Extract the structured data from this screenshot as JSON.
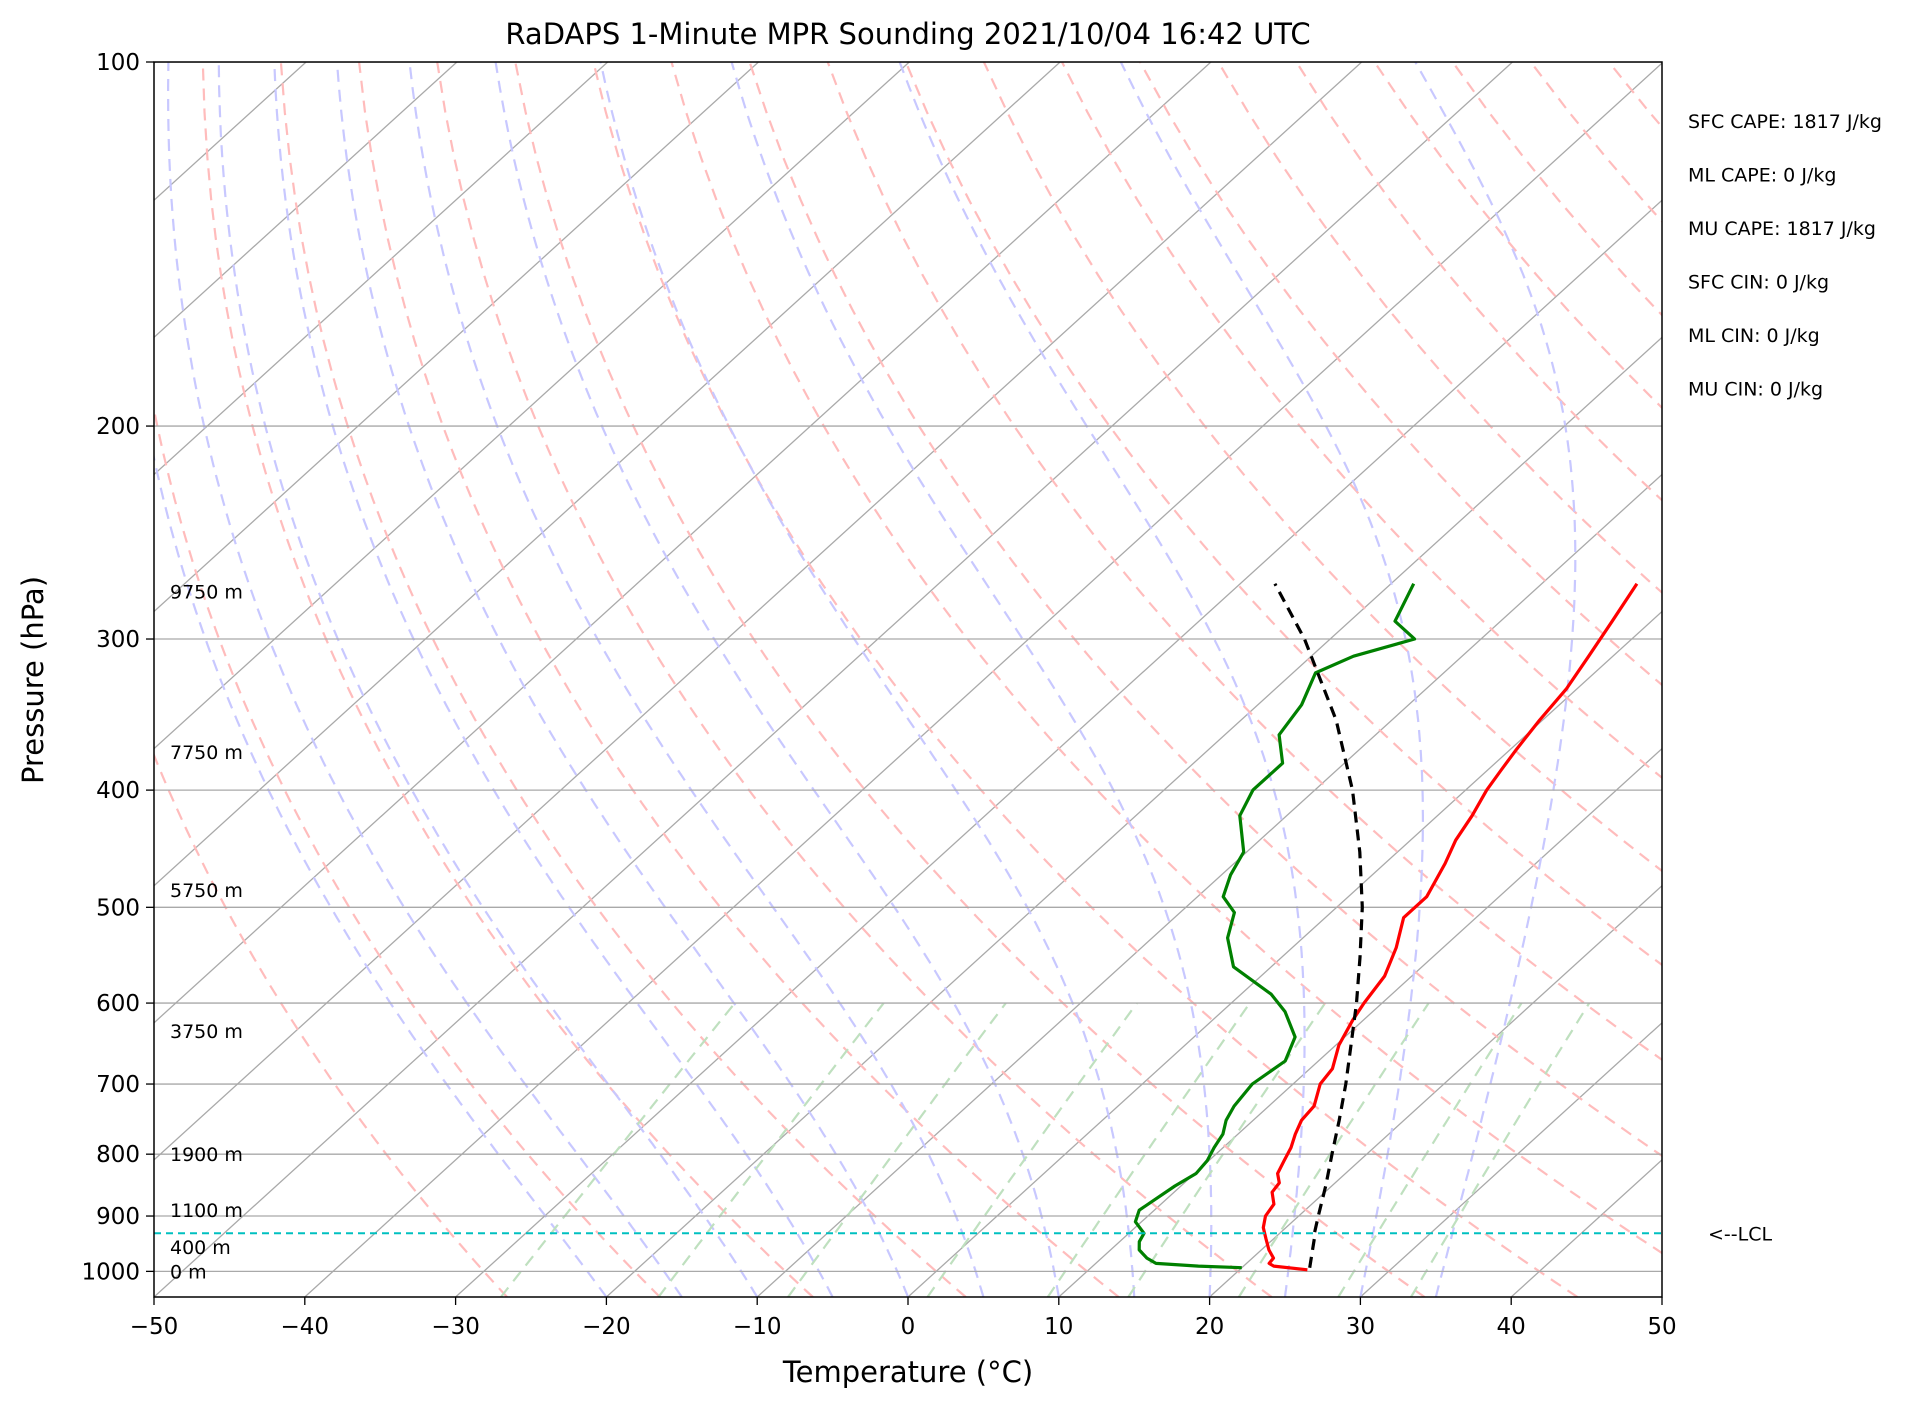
{
  "chart_data": {
    "type": "skew-t log-p sounding",
    "title": "RaDAPS 1-Minute MPR Sounding 2021/10/04 16:42 UTC",
    "xlabel": "Temperature (°C)",
    "ylabel": "Pressure (hPa)",
    "xlim": [
      -50,
      50
    ],
    "ylim": [
      1050,
      100
    ],
    "x_ticks": [
      -50,
      -40,
      -30,
      -20,
      -10,
      0,
      10,
      20,
      30,
      40,
      50
    ],
    "x_tick_labels": [
      "−50",
      "−40",
      "−30",
      "−20",
      "−10",
      "0",
      "10",
      "20",
      "30",
      "40",
      "50"
    ],
    "y_ticks": [
      1000,
      900,
      800,
      700,
      600,
      500,
      400,
      300,
      200,
      100
    ],
    "y_tick_labels": [
      "1000",
      "900",
      "800",
      "700",
      "600",
      "500",
      "400",
      "300",
      "200",
      "100"
    ],
    "grid": true,
    "y_scale": "log",
    "skew": true,
    "series": [
      {
        "kind": "temperature",
        "color": "#ff0000",
        "pressure": [
          997,
          990,
          985,
          975,
          960,
          940,
          920,
          900,
          880,
          860,
          845,
          830,
          810,
          790,
          770,
          750,
          730,
          700,
          680,
          650,
          620,
          600,
          570,
          540,
          510,
          490,
          460,
          440,
          420,
          400,
          385,
          370,
          350,
          330,
          310,
          290,
          270
        ],
        "temperature": [
          24.5,
          22,
          21.5,
          21.4,
          20.5,
          19.5,
          18.5,
          17.8,
          17.5,
          16.5,
          16.3,
          15.5,
          15,
          14.5,
          13.8,
          13.2,
          13.0,
          11.8,
          11.5,
          10.2,
          9.3,
          8.8,
          8.2,
          6.9,
          5.2,
          5.2,
          4.0,
          3.0,
          2.3,
          1.4,
          0.9,
          0.4,
          -0.2,
          -0.7,
          -1.6,
          -2.6,
          -3.7
        ]
      },
      {
        "kind": "dewpoint",
        "color": "#008000",
        "pressure": [
          993,
          990,
          985,
          975,
          960,
          945,
          930,
          910,
          890,
          870,
          850,
          830,
          810,
          790,
          770,
          750,
          730,
          700,
          670,
          640,
          610,
          590,
          560,
          530,
          505,
          490,
          470,
          450,
          420,
          400,
          380,
          360,
          340,
          320,
          310,
          300,
          290,
          270
        ],
        "dewpoint": [
          20,
          17,
          14,
          13,
          11.9,
          11.3,
          11.0,
          9.6,
          9.0,
          9.3,
          9.6,
          10.1,
          9.9,
          9.4,
          9.0,
          8.2,
          7.7,
          7.3,
          7.8,
          6.7,
          4.2,
          2.0,
          -2.5,
          -5.0,
          -6.4,
          -8.3,
          -9.4,
          -10.2,
          -13.1,
          -14.1,
          -14.1,
          -16.4,
          -17.1,
          -18.5,
          -17.2,
          -14.4,
          -17.0,
          -18.5
        ]
      },
      {
        "kind": "parcel",
        "color": "#000000",
        "pressure": [
          993,
          940,
          930,
          900,
          850,
          800,
          750,
          700,
          650,
          600,
          550,
          500,
          450,
          400,
          350,
          300,
          270
        ],
        "temperature": [
          24.5,
          22.7,
          22.3,
          21.3,
          19.6,
          17.7,
          15.7,
          13.5,
          11.0,
          8.3,
          5.2,
          1.7,
          -2.5,
          -7.5,
          -13.7,
          -21.7,
          -27.7
        ]
      }
    ],
    "lcl_pressure": 930,
    "lcl_label": "<--LCL",
    "height_labels": [
      {
        "pressure": 1000,
        "text": "0 m"
      },
      {
        "pressure": 955,
        "text": "400 m"
      },
      {
        "pressure": 890,
        "text": "1100 m"
      },
      {
        "pressure": 800,
        "text": "1900 m"
      },
      {
        "pressure": 633,
        "text": "3750 m"
      },
      {
        "pressure": 484,
        "text": "5750 m"
      },
      {
        "pressure": 372,
        "text": "7750 m"
      },
      {
        "pressure": 274,
        "text": "9750 m"
      }
    ],
    "stats": [
      "SFC CAPE: 1817 J/kg",
      "ML CAPE: 0 J/kg",
      "MU CAPE: 1817 J/kg",
      "SFC CIN: 0 J/kg",
      "ML CIN: 0 J/kg",
      "MU CIN: 0 J/kg"
    ],
    "colors": {
      "isotherm": "#a9a9a9",
      "isobar": "#a9a9a9",
      "dry_adiabat": "#ffbcbc",
      "moist_adiabat": "#c8c8ff",
      "mixing_ratio": "#bfe0bf",
      "lcl": "#00c0c0"
    }
  }
}
